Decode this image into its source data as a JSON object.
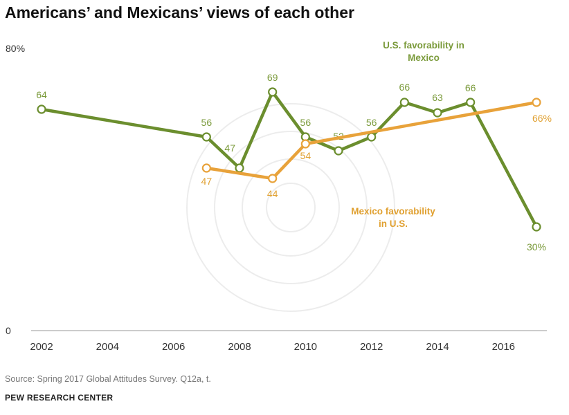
{
  "title": "Americans’ and Mexicans’ views of each other",
  "source": "Source: Spring 2017 Global Attitudes Survey. Q12a, t.",
  "org": "PEW RESEARCH CENTER",
  "colors": {
    "us_series": "#6b8e2e",
    "mex_series": "#e8a23a",
    "us_label": "#7a9a3a",
    "mex_label": "#e0a030"
  },
  "chart_data": {
    "type": "line",
    "title": "Americans’ and Mexicans’ views of each other",
    "xlabel": "",
    "ylabel": "",
    "xlim": [
      2002,
      2017
    ],
    "ylim": [
      0,
      80
    ],
    "x_ticks": [
      "2002",
      "2004",
      "2006",
      "2008",
      "2010",
      "2012",
      "2014",
      "2016"
    ],
    "y_tick_labels": [
      {
        "value": 0,
        "label": "0"
      },
      {
        "value": 80,
        "label": "80%"
      }
    ],
    "legend": "inline labels",
    "series": [
      {
        "name": "U.S. favorability in Mexico",
        "name_lines": [
          "U.S. favorability in",
          "Mexico"
        ],
        "color": "#6b8e2e",
        "points": [
          {
            "x": 2002,
            "y": 64,
            "label": "64"
          },
          {
            "x": 2007,
            "y": 56,
            "label": "56"
          },
          {
            "x": 2008,
            "y": 47,
            "label": "47"
          },
          {
            "x": 2009,
            "y": 69,
            "label": "69"
          },
          {
            "x": 2010,
            "y": 56,
            "label": "56"
          },
          {
            "x": 2011,
            "y": 52,
            "label": "52"
          },
          {
            "x": 2012,
            "y": 56,
            "label": "56"
          },
          {
            "x": 2013,
            "y": 66,
            "label": "66"
          },
          {
            "x": 2014,
            "y": 63,
            "label": "63"
          },
          {
            "x": 2015,
            "y": 66,
            "label": "66"
          },
          {
            "x": 2017,
            "y": 30,
            "label": "30%"
          }
        ]
      },
      {
        "name": "Mexico favorability in U.S.",
        "name_lines": [
          "Mexico favorability",
          "in U.S."
        ],
        "color": "#e8a23a",
        "points": [
          {
            "x": 2007,
            "y": 47,
            "label": "47"
          },
          {
            "x": 2009,
            "y": 44,
            "label": "44"
          },
          {
            "x": 2010,
            "y": 54,
            "label": "54"
          },
          {
            "x": 2017,
            "y": 66,
            "label": "66%"
          }
        ]
      }
    ]
  }
}
